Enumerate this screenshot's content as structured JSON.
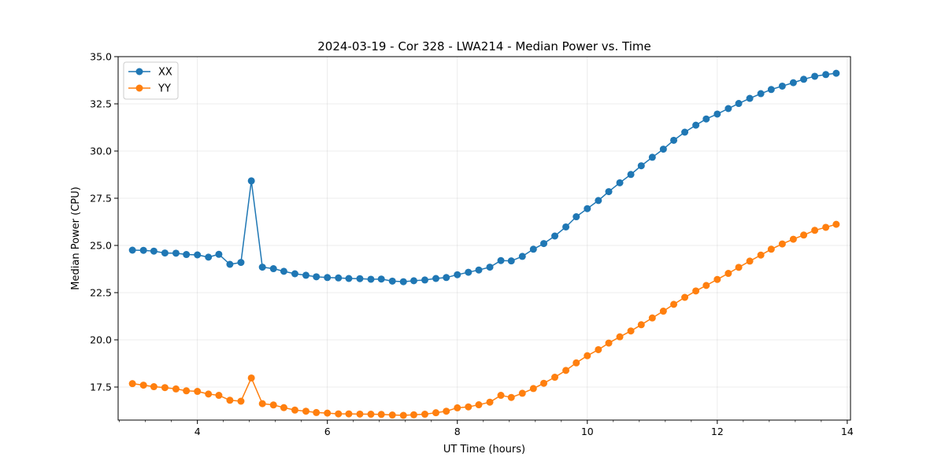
{
  "chart_data": {
    "type": "line",
    "title": "2024-03-19 - Cor 328 - LWA214 - Median Power vs. Time",
    "xlabel": "UT Time (hours)",
    "ylabel": "Median Power (CPU)",
    "xlim": [
      2.78,
      14.05
    ],
    "ylim": [
      15.75,
      35.0
    ],
    "xticks": [
      4,
      6,
      8,
      10,
      12,
      14
    ],
    "xtick_labels": [
      "4",
      "6",
      "8",
      "10",
      "12",
      "14"
    ],
    "yticks": [
      17.5,
      20.0,
      22.5,
      25.0,
      27.5,
      30.0,
      32.5,
      35.0
    ],
    "ytick_labels": [
      "17.5",
      "20.0",
      "22.5",
      "25.0",
      "27.5",
      "30.0",
      "32.5",
      "35.0"
    ],
    "grid": true,
    "legend_position": "top-left",
    "x": [
      3.0,
      3.17,
      3.33,
      3.5,
      3.67,
      3.83,
      4.0,
      4.17,
      4.33,
      4.5,
      4.67,
      4.83,
      5.0,
      5.17,
      5.33,
      5.5,
      5.67,
      5.83,
      6.0,
      6.17,
      6.33,
      6.5,
      6.67,
      6.83,
      7.0,
      7.17,
      7.33,
      7.5,
      7.67,
      7.83,
      8.0,
      8.17,
      8.33,
      8.5,
      8.67,
      8.83,
      9.0,
      9.17,
      9.33,
      9.5,
      9.67,
      9.83,
      10.0,
      10.17,
      10.33,
      10.5,
      10.67,
      10.83,
      11.0,
      11.17,
      11.33,
      11.5,
      11.67,
      11.83,
      12.0,
      12.17,
      12.33,
      12.5,
      12.67,
      12.83,
      13.0,
      13.17,
      13.33,
      13.5,
      13.67,
      13.83
    ],
    "series": [
      {
        "name": "XX",
        "color": "#1f77b4",
        "values": [
          24.75,
          24.74,
          24.7,
          24.6,
          24.59,
          24.52,
          24.5,
          24.38,
          24.53,
          24.0,
          24.1,
          28.42,
          23.85,
          23.77,
          23.63,
          23.5,
          23.42,
          23.34,
          23.3,
          23.28,
          23.25,
          23.24,
          23.21,
          23.22,
          23.11,
          23.08,
          23.13,
          23.17,
          23.25,
          23.3,
          23.45,
          23.58,
          23.7,
          23.85,
          24.2,
          24.18,
          24.42,
          24.8,
          25.1,
          25.5,
          25.98,
          26.52,
          26.95,
          27.38,
          27.85,
          28.32,
          28.76,
          29.22,
          29.67,
          30.1,
          30.57,
          31.0,
          31.37,
          31.7,
          31.96,
          32.25,
          32.52,
          32.79,
          33.04,
          33.26,
          33.44,
          33.62,
          33.8,
          33.96,
          34.05,
          34.12
        ]
      },
      {
        "name": "YY",
        "color": "#ff7f0e",
        "values": [
          17.68,
          17.6,
          17.52,
          17.47,
          17.4,
          17.3,
          17.27,
          17.13,
          17.06,
          16.8,
          16.75,
          17.98,
          16.62,
          16.55,
          16.41,
          16.28,
          16.22,
          16.15,
          16.12,
          16.08,
          16.08,
          16.07,
          16.06,
          16.05,
          16.02,
          16.0,
          16.03,
          16.06,
          16.14,
          16.22,
          16.4,
          16.45,
          16.56,
          16.7,
          17.06,
          16.95,
          17.17,
          17.42,
          17.7,
          18.02,
          18.38,
          18.78,
          19.16,
          19.48,
          19.83,
          20.16,
          20.47,
          20.8,
          21.16,
          21.52,
          21.88,
          22.25,
          22.59,
          22.88,
          23.2,
          23.52,
          23.84,
          24.17,
          24.49,
          24.8,
          25.08,
          25.33,
          25.55,
          25.8,
          25.96,
          26.12
        ]
      }
    ]
  }
}
